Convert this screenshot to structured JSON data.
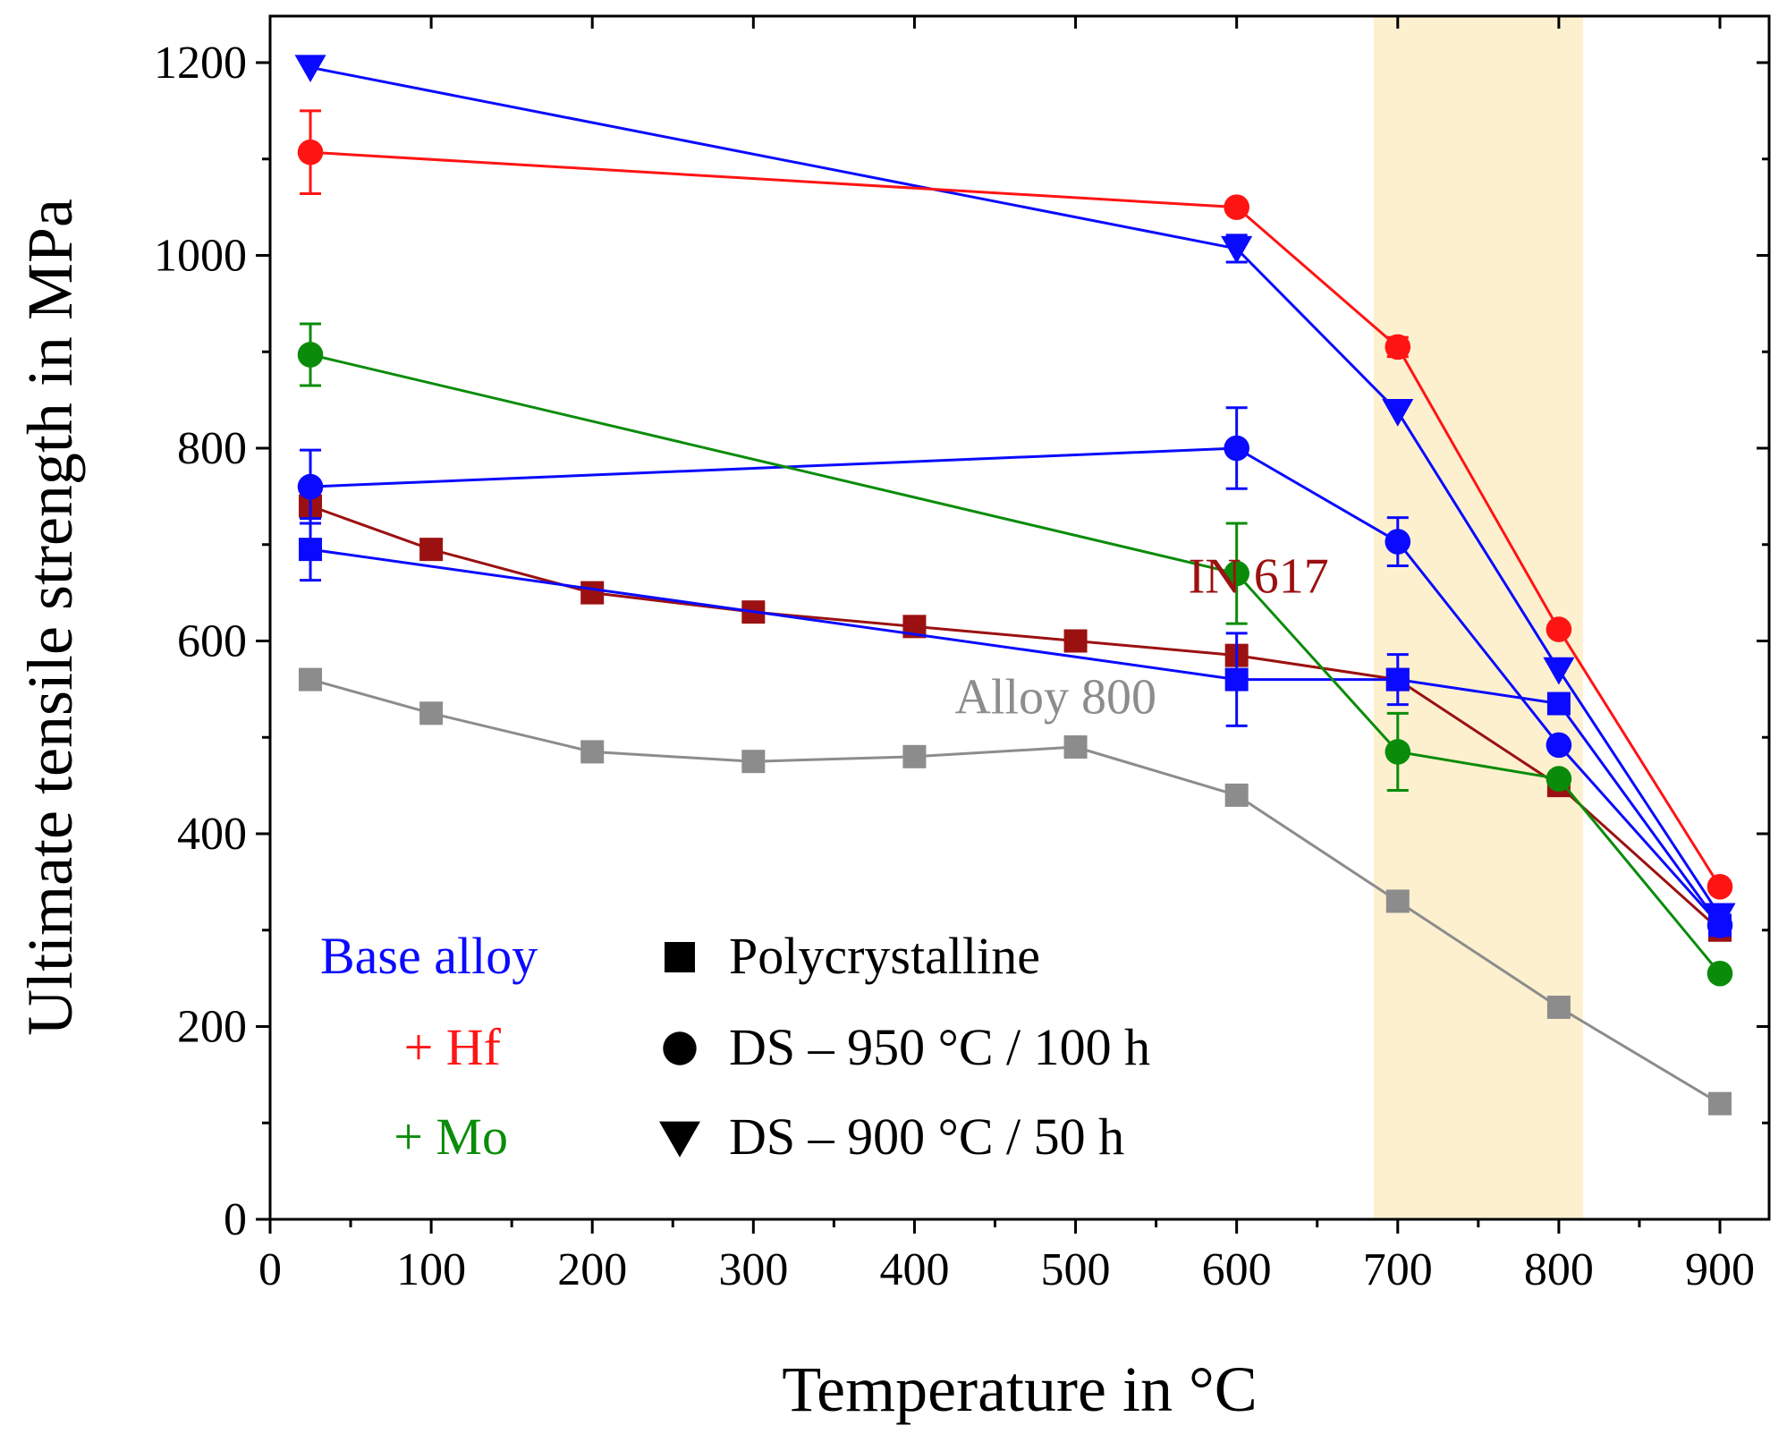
{
  "chart_data": {
    "type": "line",
    "xlabel": "Temperature in °C",
    "ylabel": "Ultimate tensile strength in MPa",
    "xlim": [
      0,
      925
    ],
    "ylim": [
      0,
      1230
    ],
    "xticks": [
      0,
      100,
      200,
      300,
      400,
      500,
      600,
      700,
      800,
      900
    ],
    "yticks": [
      0,
      200,
      400,
      600,
      800,
      1000,
      1200
    ],
    "x_tick_labels": [
      "0",
      "100",
      "200",
      "300",
      "400",
      "500",
      "600",
      "700",
      "800",
      "900"
    ],
    "y_tick_labels": [
      "0",
      "200",
      "400",
      "600",
      "800",
      "1000",
      "1200"
    ],
    "highlight_band": {
      "x0": 685,
      "x1": 815,
      "color": "#fdf0cf"
    },
    "series": [
      {
        "name": "Alloy 800",
        "label": "Alloy 800",
        "color": "#8c8c8c",
        "marker": "square",
        "x": [
          25,
          100,
          200,
          300,
          400,
          500,
          600,
          700,
          800,
          900
        ],
        "y": [
          560,
          525,
          485,
          475,
          480,
          490,
          440,
          330,
          220,
          120
        ]
      },
      {
        "name": "IN 617",
        "label": "IN 617",
        "color": "#9b1111",
        "marker": "square",
        "x": [
          25,
          100,
          200,
          300,
          400,
          500,
          600,
          700,
          800,
          900
        ],
        "y": [
          740,
          695,
          650,
          630,
          615,
          600,
          585,
          560,
          450,
          300
        ]
      },
      {
        "name": "Base alloy – Polycrystalline",
        "color": "#0a0aff",
        "marker": "square",
        "x": [
          25,
          600,
          700,
          800,
          900
        ],
        "y": [
          695,
          560,
          560,
          535,
          305
        ],
        "err": [
          32,
          48,
          26,
          0,
          0
        ]
      },
      {
        "name": "Base alloy – DS 950 °C / 100 h",
        "color": "#0a0aff",
        "marker": "circle",
        "x": [
          25,
          600,
          700,
          800,
          900
        ],
        "y": [
          760,
          800,
          703,
          492,
          305
        ],
        "err": [
          38,
          42,
          25,
          0,
          0
        ]
      },
      {
        "name": "Base alloy – DS 900 °C / 50 h",
        "color": "#0a0aff",
        "marker": "triangle-down",
        "x": [
          25,
          600,
          700,
          800,
          900
        ],
        "y": [
          1195,
          1007,
          838,
          570,
          315
        ],
        "err": [
          0,
          14,
          0,
          0,
          0
        ]
      },
      {
        "name": "+ Hf – DS 950 °C / 100 h",
        "color": "#ff1414",
        "marker": "circle",
        "x": [
          25,
          600,
          700,
          800,
          900
        ],
        "y": [
          1107,
          1050,
          905,
          612,
          345
        ],
        "err": [
          43,
          0,
          10,
          0,
          0
        ]
      },
      {
        "name": "+ Mo – DS 950 °C / 100 h",
        "color": "#0a8c0a",
        "marker": "circle",
        "x": [
          25,
          600,
          700,
          800,
          900
        ],
        "y": [
          897,
          670,
          485,
          457,
          255
        ],
        "err": [
          32,
          52,
          40,
          0,
          0
        ]
      }
    ],
    "annotations": [
      {
        "text": "IN 617",
        "x": 570,
        "y": 650,
        "color": "#9b1111"
      },
      {
        "text": "Alloy 800",
        "x": 425,
        "y": 525,
        "color": "#8c8c8c"
      }
    ],
    "legend_alloys": [
      {
        "label": "Base alloy",
        "color": "#0a0aff"
      },
      {
        "label": "+ Hf",
        "color": "#ff1414"
      },
      {
        "label": "+ Mo",
        "color": "#0a8c0a"
      }
    ],
    "legend_markers": [
      {
        "label": "Polycrystalline",
        "marker": "square"
      },
      {
        "label": "DS – 950 °C / 100 h",
        "marker": "circle"
      },
      {
        "label": "DS – 900 °C / 50 h",
        "marker": "triangle-down"
      }
    ]
  }
}
